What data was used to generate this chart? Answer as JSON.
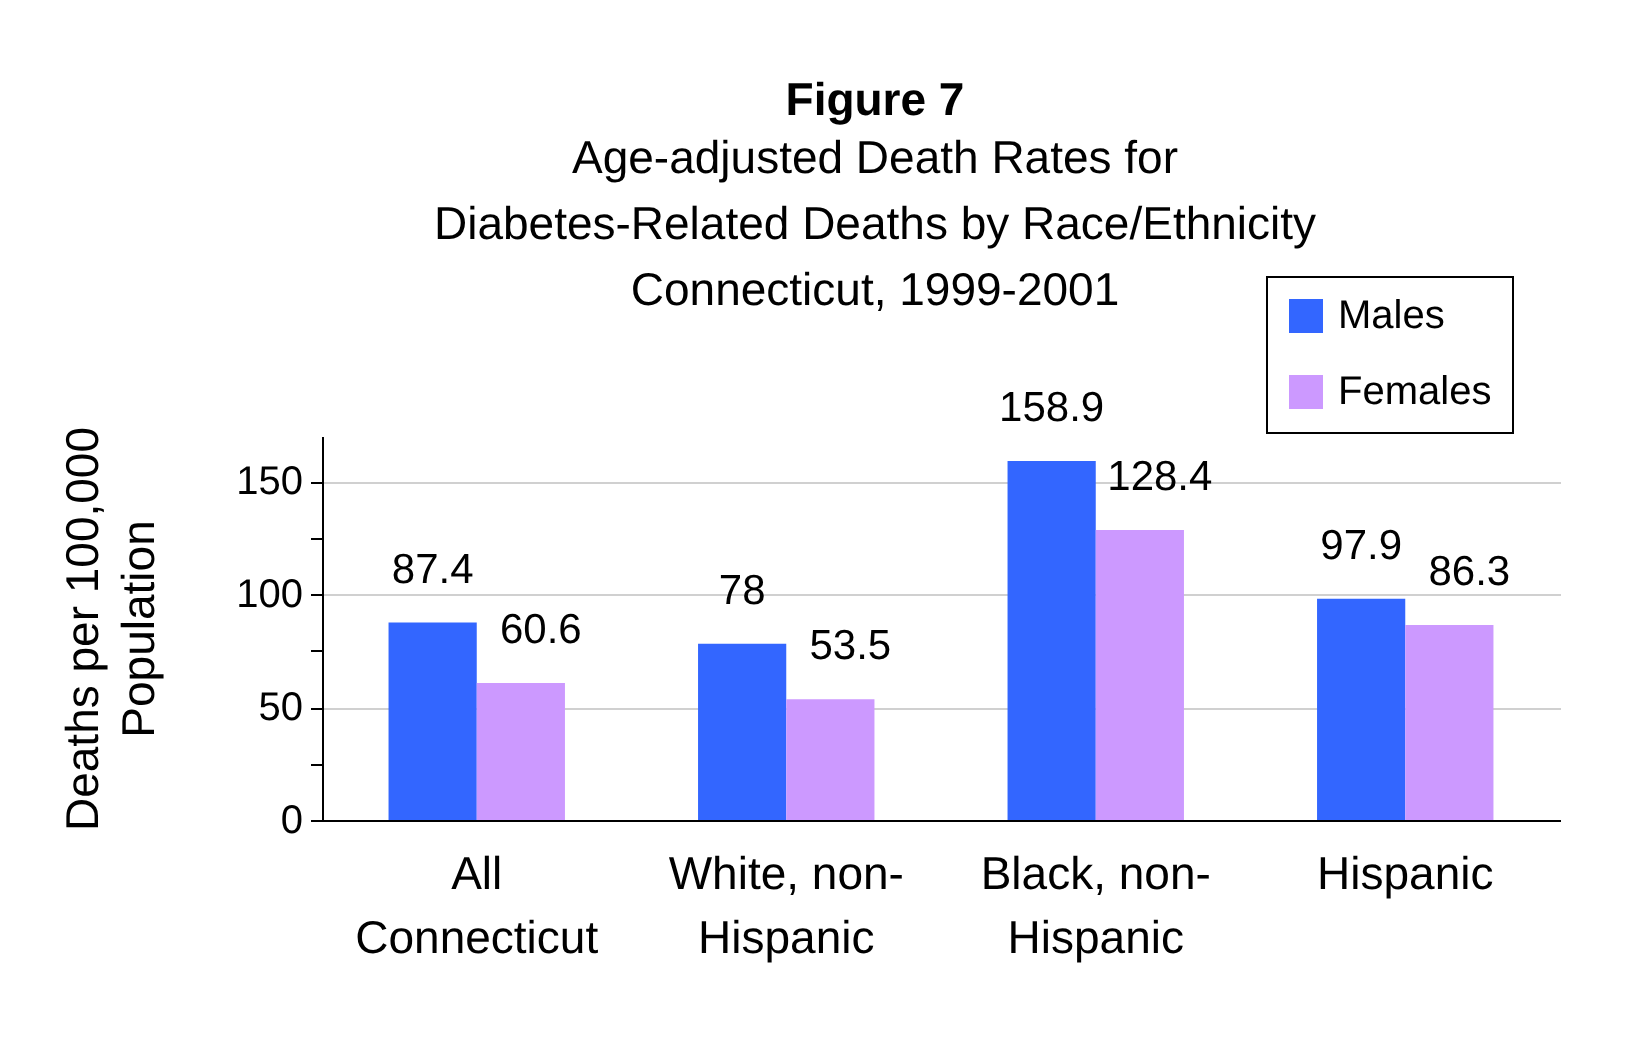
{
  "chart_data": {
    "type": "bar",
    "title": "Figure 7",
    "subtitle": "Age-adjusted Death Rates for\nDiabetes-Related Deaths by Race/Ethnicity\nConnecticut, 1999-2001",
    "ylabel": "Deaths per 100,000\nPopulation",
    "categories": [
      "All\nConnecticut",
      "White, non-\nHispanic",
      "Black, non-\nHispanic",
      "Hispanic"
    ],
    "series": [
      {
        "name": "Males",
        "color": "#3366ff",
        "values": [
          87.4,
          78,
          158.9,
          97.9
        ]
      },
      {
        "name": "Females",
        "color": "#cc99ff",
        "values": [
          60.6,
          53.5,
          128.4,
          86.3
        ]
      }
    ],
    "ylim": [
      0,
      170
    ],
    "yticks": [
      0,
      {
        "value": 25,
        "label": null
      },
      50,
      {
        "value": 75,
        "label": null
      },
      100,
      {
        "value": 125,
        "label": null
      },
      150
    ],
    "grid": "y",
    "legend": "top right",
    "data_labels": true
  }
}
